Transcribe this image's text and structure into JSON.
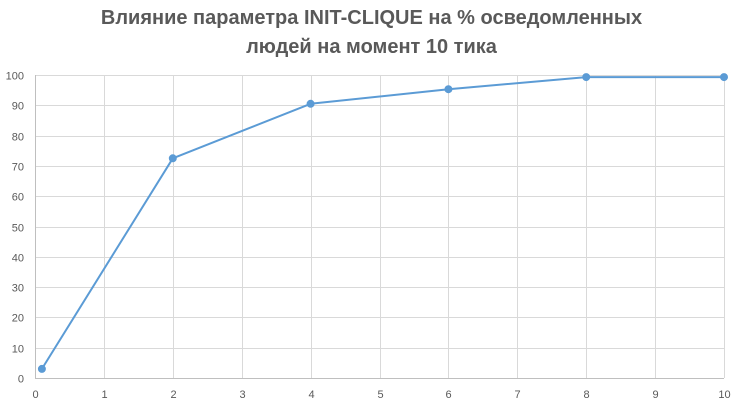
{
  "chart_data": {
    "type": "scatter",
    "title_lines": [
      "Влияние параметра INIT-CLIQUE на % осведомленных",
      "людей на момент 10 тика"
    ],
    "xlabel": "",
    "ylabel": "",
    "xlim": [
      0,
      10
    ],
    "ylim": [
      0,
      100
    ],
    "x_ticks": [
      0,
      1,
      2,
      3,
      4,
      5,
      6,
      7,
      8,
      9,
      10
    ],
    "y_ticks": [
      0,
      10,
      20,
      30,
      40,
      50,
      60,
      70,
      80,
      90,
      100
    ],
    "grid": true,
    "legend": "none",
    "series": [
      {
        "color": "#5b9bd5",
        "x": [
          0.1,
          2,
          4,
          6,
          8,
          10
        ],
        "y": [
          3,
          72.5,
          90.5,
          95.3,
          99.3,
          99.3
        ]
      }
    ]
  }
}
